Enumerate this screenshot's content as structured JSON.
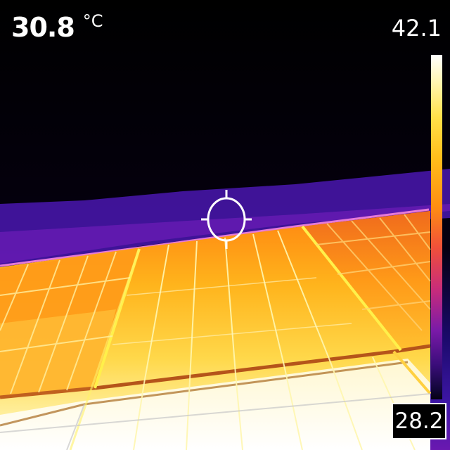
{
  "spot": {
    "value": "30.8",
    "unit": "°C"
  },
  "scale": {
    "max": "42.1",
    "min": "28.2"
  },
  "palette": {
    "hot": "#ffffff",
    "warm": "#ffc21a",
    "mid": "#ff8c10",
    "cool": "#7a1aa8",
    "cold": "#000000"
  }
}
